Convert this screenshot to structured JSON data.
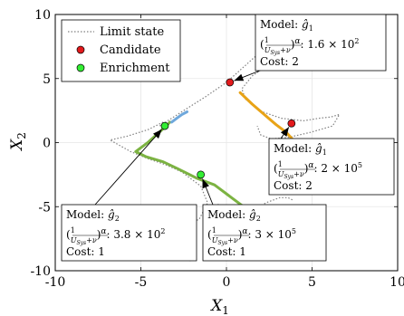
{
  "chart_data": {
    "type": "scatter",
    "xlabel": "X",
    "xlabel_sub": "1",
    "ylabel": "X",
    "ylabel_sub": "2",
    "xlim": [
      -10,
      10
    ],
    "ylim": [
      -10,
      10
    ],
    "xticks": [
      "-10",
      "-5",
      "0",
      "5",
      "10"
    ],
    "yticks": [
      "10",
      "5",
      "0",
      "-5",
      "-10"
    ],
    "xtick_values": [
      -10,
      -5,
      0,
      5,
      10
    ],
    "ytick_values": [
      10,
      5,
      0,
      -5,
      -10
    ],
    "grid": true,
    "legend": {
      "placement": "top-left",
      "entries": [
        {
          "label": "Limit state",
          "marker": "dotted-line",
          "color": "#808080"
        },
        {
          "label": "Candidate",
          "marker": "circle",
          "color": "#e31a1c"
        },
        {
          "label": "Enrichment",
          "marker": "circle",
          "color": "#33ee33"
        }
      ]
    },
    "colors": {
      "limit_state": "#808080",
      "candidate": "#e31a1c",
      "enrichment": "#33ee33",
      "branch_orange": "#e8a317",
      "branch_green": "#7cb342",
      "branch_blue": "#6fa8dc"
    },
    "limit_state": [
      [
        [
          -3.9,
          1.3
        ],
        [
          -2.5,
          2.5
        ],
        [
          -1.2,
          3.6
        ],
        [
          0,
          4.7
        ],
        [
          1.5,
          6.5
        ],
        [
          3,
          8.3
        ],
        [
          4.5,
          9.8
        ]
      ],
      [
        [
          3.6,
          8.2
        ],
        [
          3.4,
          7.1
        ],
        [
          2.5,
          6.1
        ],
        [
          1.5,
          5.2
        ],
        [
          0.9,
          4.2
        ],
        [
          1.1,
          3.4
        ],
        [
          2.1,
          2.4
        ],
        [
          3.2,
          1.9
        ],
        [
          4.5,
          1.7
        ],
        [
          5.4,
          1.9
        ],
        [
          6.1,
          2.0
        ],
        [
          6.6,
          2.2
        ],
        [
          6.2,
          1.3
        ],
        [
          4.9,
          0.8
        ],
        [
          3.6,
          0.4
        ],
        [
          2.6,
          0.3
        ],
        [
          2.0,
          0.6
        ],
        [
          1.8,
          1.3
        ]
      ],
      [
        [
          -3.7,
          1.6
        ],
        [
          -4.6,
          1.0
        ],
        [
          -5.8,
          0.5
        ],
        [
          -6.8,
          0.2
        ],
        [
          -5.6,
          -0.7
        ],
        [
          -4.5,
          -1.3
        ],
        [
          -3.6,
          -1.7
        ],
        [
          -2.6,
          -2.3
        ],
        [
          -1.5,
          -3.4
        ],
        [
          -1.1,
          -4.7
        ],
        [
          -1.6,
          -6.0
        ],
        [
          -2.6,
          -6.4
        ],
        [
          -3.0,
          -6.6
        ],
        [
          -2.7,
          -7.4
        ],
        [
          -2.3,
          -8.3
        ],
        [
          -2.1,
          -9.3
        ]
      ],
      [
        [
          0.3,
          -7.4
        ],
        [
          0.6,
          -6.8
        ],
        [
          1.0,
          -6.0
        ],
        [
          1.6,
          -5.3
        ],
        [
          2.3,
          -4.7
        ],
        [
          3.1,
          -4.3
        ],
        [
          3.6,
          -4.3
        ],
        [
          3.9,
          -4.5
        ]
      ],
      [
        [
          -0.5,
          -4.8
        ],
        [
          -0.1,
          -5.3
        ],
        [
          0.3,
          -5.7
        ]
      ]
    ],
    "enrichment_branches": [
      {
        "color": "#e8a317",
        "points": [
          [
            0.8,
            3.9
          ],
          [
            1.5,
            3.0
          ],
          [
            2.2,
            2.2
          ],
          [
            2.9,
            1.4
          ],
          [
            3.5,
            0.8
          ],
          [
            4.1,
            -0.1
          ],
          [
            4.8,
            -0.9
          ],
          [
            5.3,
            -1.6
          ],
          [
            5.7,
            -2.3
          ],
          [
            6.1,
            -2.7
          ]
        ]
      },
      {
        "color": "#7cb342",
        "points": [
          [
            -3.3,
            1.6
          ],
          [
            -3.6,
            1.2
          ],
          [
            -4.6,
            0.0
          ],
          [
            -5.3,
            -0.7
          ],
          [
            -4.7,
            -1.1
          ],
          [
            -3.7,
            -1.5
          ],
          [
            -2.9,
            -2.0
          ],
          [
            -1.7,
            -2.8
          ],
          [
            -0.7,
            -3.3
          ],
          [
            0.1,
            -4.1
          ],
          [
            0.9,
            -4.9
          ]
        ]
      },
      {
        "color": "#6fa8dc",
        "points": [
          [
            -3.2,
            1.6
          ],
          [
            -2.9,
            1.9
          ],
          [
            -2.6,
            2.2
          ],
          [
            -2.3,
            2.4
          ]
        ]
      }
    ],
    "candidates": [
      {
        "x": 0.2,
        "y": 4.7
      },
      {
        "x": 3.8,
        "y": 1.5
      }
    ],
    "enrichments": [
      {
        "x": -3.6,
        "y": 1.3
      },
      {
        "x": -1.5,
        "y": -2.5
      }
    ],
    "annotations": [
      {
        "model": "Model:",
        "g": "ĝ",
        "g_sub": "1",
        "frac_num": "1",
        "frac_den": "U",
        "frac_den_sub": "Sys",
        "frac_den_tail": "+ν",
        "exp": "α",
        "value": ": 1.6 × 10",
        "value_exp": "2",
        "cost": "Cost: 2",
        "target": {
          "x": 0.2,
          "y": 4.7
        }
      },
      {
        "model": "Model:",
        "g": "ĝ",
        "g_sub": "1",
        "frac_num": "1",
        "frac_den": "U",
        "frac_den_sub": "Sys",
        "frac_den_tail": "+ν",
        "exp": "α",
        "value": ": 2 × 10",
        "value_exp": "5",
        "cost": "Cost: 2",
        "target": {
          "x": 3.8,
          "y": 1.5
        }
      },
      {
        "model": "Model:",
        "g": "ĝ",
        "g_sub": "2",
        "frac_num": "1",
        "frac_den": "U",
        "frac_den_sub": "Sys",
        "frac_den_tail": "+ν",
        "exp": "α",
        "value": ": 3.8 × 10",
        "value_exp": "2",
        "cost": "Cost: 1",
        "target": {
          "x": -3.6,
          "y": 1.3
        }
      },
      {
        "model": "Model:",
        "g": "ĝ",
        "g_sub": "2",
        "frac_num": "1",
        "frac_den": "U",
        "frac_den_sub": "Sys",
        "frac_den_tail": "+ν",
        "exp": "α",
        "value": ": 3 × 10",
        "value_exp": "5",
        "cost": "Cost: 1",
        "target": {
          "x": -1.5,
          "y": -2.5
        }
      }
    ]
  }
}
